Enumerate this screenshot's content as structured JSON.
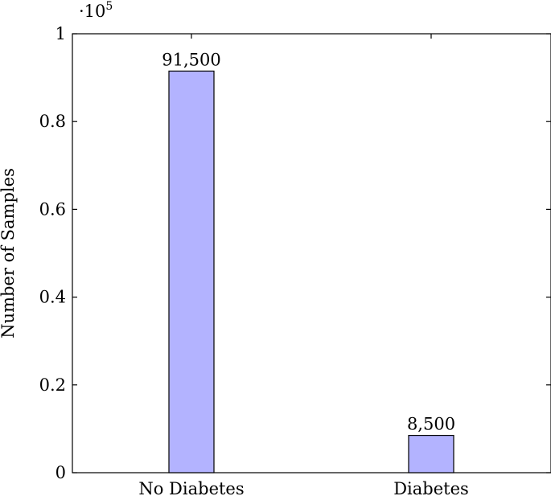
{
  "chart_data": {
    "type": "bar",
    "title": "",
    "xlabel": "",
    "ylabel": "Number of Samples",
    "ylim": [
      0,
      100000
    ],
    "y_scale_label": {
      "base": "·10",
      "exponent": "5"
    },
    "y_tick_values": [
      0,
      0.2,
      0.4,
      0.6,
      0.8,
      1
    ],
    "y_tick_labels": [
      "0",
      "0.2",
      "0.4",
      "0.6",
      "0.8",
      "1"
    ],
    "categories": [
      "No Diabetes",
      "Diabetes"
    ],
    "values": [
      91500,
      8500
    ],
    "data_labels": [
      "91,500",
      "8,500"
    ],
    "grid": false,
    "colors": {
      "bar_fill": "#b3b3ff",
      "bar_stroke": "#000000"
    }
  }
}
